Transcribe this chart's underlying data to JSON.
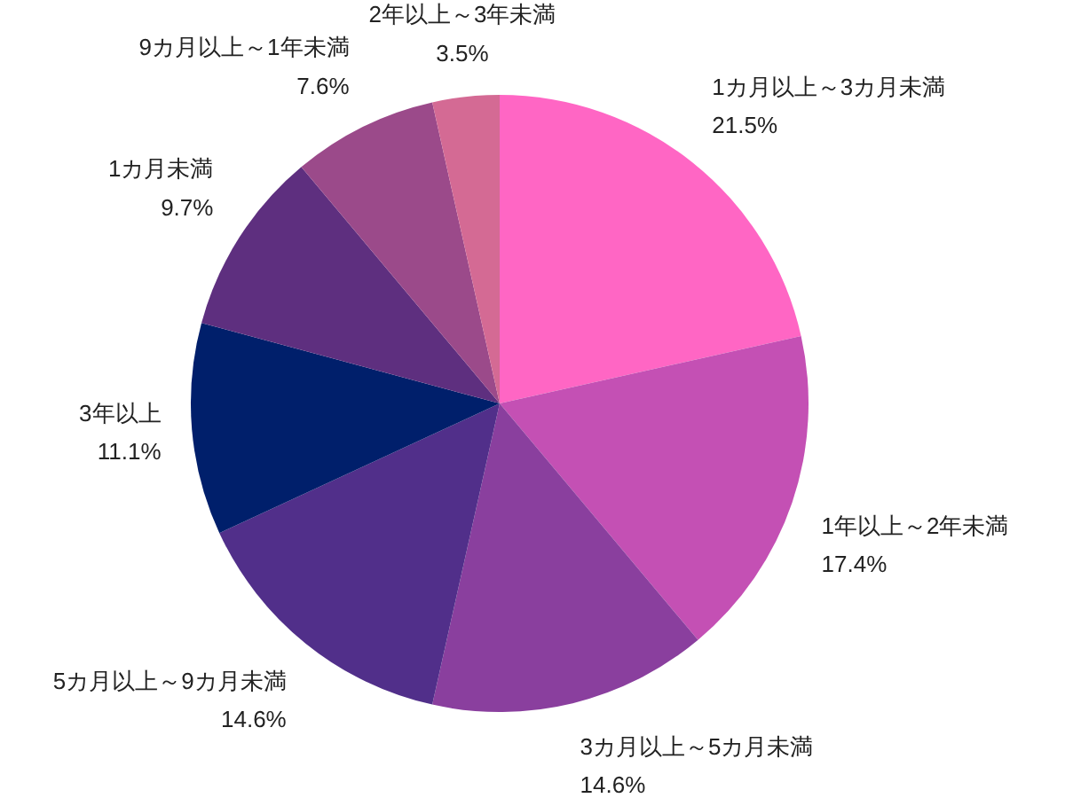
{
  "chart_data": {
    "type": "pie",
    "categories": [
      "1カ月以上～3カ月未満",
      "1年以上～2年未満",
      "3カ月以上～5カ月未満",
      "5カ月以上～9カ月未満",
      "3年以上",
      "1カ月未満",
      "9カ月以上～1年未満",
      "2年以上～3年未満"
    ],
    "values": [
      21.5,
      17.4,
      14.6,
      14.6,
      11.1,
      9.7,
      7.6,
      3.5
    ],
    "value_labels": [
      "21.5%",
      "17.4%",
      "14.6%",
      "14.6%",
      "11.1%",
      "9.7%",
      "7.6%",
      "3.5%"
    ],
    "colors": [
      "#ff66c4",
      "#c450b4",
      "#8a3f9e",
      "#512f8a",
      "#001f6b",
      "#5e2f7f",
      "#9b4a8a",
      "#d46a94"
    ]
  }
}
